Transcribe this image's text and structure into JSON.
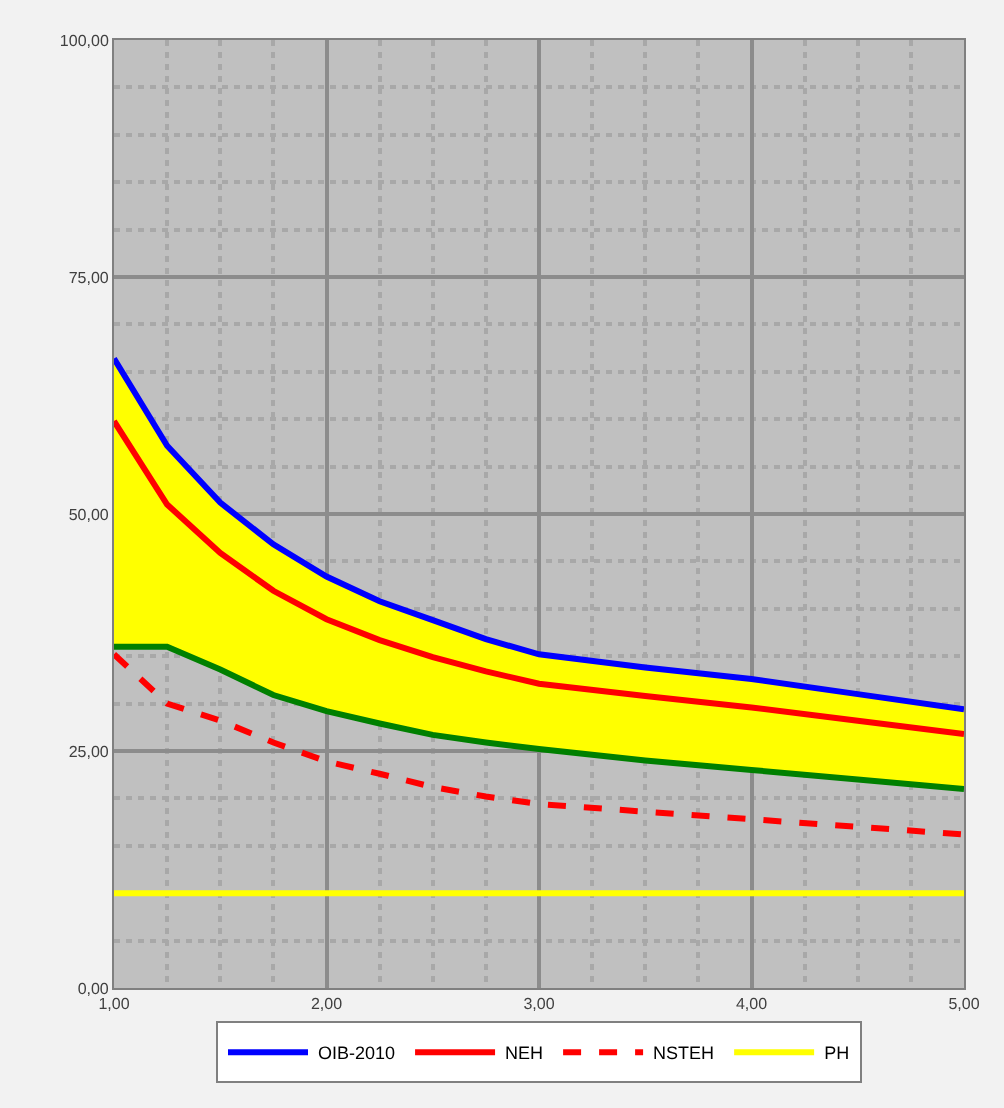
{
  "chart_data": {
    "type": "line",
    "x": [
      1.0,
      1.25,
      1.5,
      1.75,
      2.0,
      2.25,
      2.5,
      2.75,
      3.0,
      3.5,
      4.0,
      4.5,
      5.0
    ],
    "series": [
      {
        "color": "#008000",
        "values": [
          36,
          36,
          33.6,
          30.9,
          29.2,
          27.9,
          26.7,
          25.9,
          25.2,
          24,
          23,
          22,
          21
        ]
      },
      {
        "type": "area",
        "color": "#ffff00",
        "values": [
          66.4,
          57.2,
          51.2,
          46.8,
          43.4,
          40.8,
          38.8,
          36.8,
          35.2,
          33.8,
          32.6,
          31,
          29.4
        ]
      },
      {
        "name": "OIB-2010",
        "color": "#0000ff",
        "values": [
          66.4,
          57.2,
          51.2,
          46.8,
          43.4,
          40.8,
          38.8,
          36.8,
          35.2,
          33.8,
          32.6,
          31,
          29.4
        ]
      },
      {
        "name": "NEH",
        "color": "#ff0000",
        "values": [
          59.8,
          51,
          45.9,
          41.9,
          38.9,
          36.7,
          34.9,
          33.4,
          32.1,
          30.8,
          29.6,
          28.2,
          26.8
        ]
      },
      {
        "name": "NSTEH",
        "color": "#ff0000",
        "line_style": "dashed",
        "values": [
          35.2,
          30,
          28.2,
          25.9,
          23.9,
          22.6,
          21.2,
          20.2,
          19.4,
          18.6,
          17.8,
          17,
          16.2
        ]
      },
      {
        "name": "PH",
        "color": "#ffff00",
        "values": [
          10,
          10,
          10,
          10,
          10,
          10,
          10,
          10,
          10,
          10,
          10,
          10,
          10
        ]
      }
    ],
    "xlim": [
      1,
      5
    ],
    "ylim": [
      0,
      100
    ],
    "xticks": [
      {
        "value": 1,
        "label": "1,00"
      },
      {
        "value": 2,
        "label": "2,00"
      },
      {
        "value": 3,
        "label": "3,00"
      },
      {
        "value": 4,
        "label": "4,00"
      },
      {
        "value": 5,
        "label": "5,00"
      }
    ],
    "yticks": [
      {
        "value": 0,
        "label": "0,00"
      },
      {
        "value": 25,
        "label": "25,00"
      },
      {
        "value": 50,
        "label": "50,00"
      },
      {
        "value": 75,
        "label": "75,00"
      },
      {
        "value": 100,
        "label": "100,00"
      }
    ],
    "grid": true,
    "legend": "bottom",
    "marker": "none",
    "line_style": "solid"
  }
}
